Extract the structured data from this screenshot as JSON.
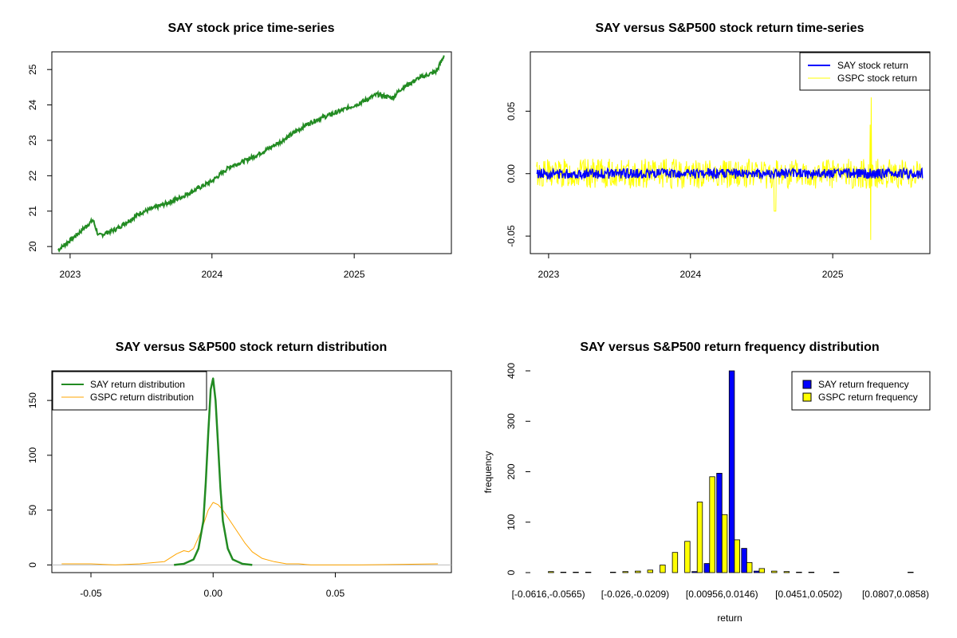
{
  "chart_data": [
    {
      "type": "line",
      "title": "SAY stock price time-series",
      "xlabel": "",
      "ylabel": "",
      "x_ticks": [
        "2023",
        "2024",
        "2025"
      ],
      "y_ticks": [
        20,
        21,
        22,
        23,
        24,
        25
      ],
      "xlim": [
        "2022-11-15",
        "2025-09-08"
      ],
      "ylim": [
        19.8,
        25.5
      ],
      "series": [
        {
          "color": "#228B22",
          "x": [
            "2022-12-01",
            "2023-01-15",
            "2023-03-01",
            "2023-03-15",
            "2023-05-01",
            "2023-07-01",
            "2023-09-01",
            "2023-10-15",
            "2024-01-01",
            "2024-02-15",
            "2024-04-01",
            "2024-05-15",
            "2024-07-01",
            "2024-09-01",
            "2024-10-01",
            "2024-12-01",
            "2025-01-15",
            "2025-03-01",
            "2025-04-10",
            "2025-05-01",
            "2025-06-15",
            "2025-08-01",
            "2025-08-20"
          ],
          "values": [
            19.9,
            20.3,
            20.75,
            20.3,
            20.5,
            20.95,
            21.2,
            21.4,
            21.85,
            22.25,
            22.45,
            22.7,
            23.0,
            23.45,
            23.6,
            23.85,
            24.05,
            24.3,
            24.2,
            24.45,
            24.75,
            24.95,
            25.4
          ]
        }
      ]
    },
    {
      "type": "line",
      "title": "SAY versus S&P500 stock return time-series",
      "xlabel": "",
      "ylabel": "",
      "x_ticks": [
        "2023",
        "2024",
        "2025"
      ],
      "y_ticks": [
        "-0.05",
        "0.00",
        "0.05"
      ],
      "xlim": [
        "2022-11-15",
        "2025-09-08"
      ],
      "ylim": [
        -0.064,
        0.0975
      ],
      "legend": "top-right",
      "series": [
        {
          "name": "SAY stock return",
          "color": "#0000FF",
          "amplitude": 0.004
        },
        {
          "name": "GSPC stock return",
          "color": "#FFFF00",
          "amplitude": 0.012
        }
      ]
    },
    {
      "type": "line",
      "title": "SAY versus S&P500 stock return distribution",
      "xlabel": "",
      "ylabel": "",
      "x_ticks": [
        "-0.05",
        "0.00",
        "0.05"
      ],
      "y_ticks": [
        0,
        50,
        100,
        150
      ],
      "xlim": [
        -0.066,
        0.0975
      ],
      "ylim": [
        -7,
        177
      ],
      "legend": "top-left",
      "series": [
        {
          "name": "SAY return distribution",
          "color": "#228B22",
          "x": [
            -0.016,
            -0.012,
            -0.008,
            -0.006,
            -0.004,
            -0.003,
            -0.002,
            -0.001,
            0,
            0.001,
            0.002,
            0.003,
            0.004,
            0.006,
            0.008,
            0.012,
            0.016
          ],
          "values": [
            0,
            1,
            5,
            15,
            40,
            75,
            120,
            160,
            170,
            150,
            110,
            70,
            40,
            15,
            5,
            1,
            0
          ]
        },
        {
          "name": "GSPC return distribution",
          "color": "#FFA500",
          "x": [
            -0.062,
            -0.05,
            -0.04,
            -0.03,
            -0.02,
            -0.015,
            -0.012,
            -0.01,
            -0.008,
            -0.005,
            -0.002,
            0,
            0.002,
            0.004,
            0.007,
            0.01,
            0.013,
            0.016,
            0.02,
            0.025,
            0.03,
            0.035,
            0.04,
            0.06,
            0.092
          ],
          "values": [
            1,
            1,
            0,
            1,
            3,
            10,
            13,
            12,
            15,
            30,
            50,
            57,
            55,
            50,
            40,
            30,
            20,
            12,
            6,
            3,
            1,
            1,
            0,
            0,
            1
          ]
        }
      ]
    },
    {
      "type": "bar",
      "title": "SAY versus S&P500 return frequency distribution",
      "xlabel": "return",
      "ylabel": "frequency",
      "x_tick_labels": [
        "[-0.0616,-0.0565)",
        "[-0.026,-0.0209)",
        "[0.00956,0.0146)",
        "[0.0451,0.0502)",
        "[0.0807,0.0858)"
      ],
      "y_ticks": [
        0,
        100,
        200,
        300,
        400
      ],
      "ylim": [
        0,
        400
      ],
      "legend": "top-right",
      "series": [
        {
          "name": "SAY return frequency",
          "color": "#0000FF",
          "values": [
            0,
            0,
            0,
            0,
            0,
            0,
            0,
            0,
            0,
            0,
            0,
            0,
            2,
            18,
            197,
            400,
            48,
            3,
            0,
            0,
            0,
            0,
            0,
            0,
            0,
            0,
            0,
            0,
            0,
            0
          ]
        },
        {
          "name": "GSPC return frequency",
          "color": "#FFFF00",
          "values": [
            2,
            1,
            1,
            1,
            0,
            1,
            2,
            3,
            5,
            15,
            40,
            62,
            140,
            190,
            115,
            65,
            20,
            8,
            3,
            2,
            1,
            1,
            0,
            1,
            0,
            0,
            0,
            0,
            0,
            1
          ]
        }
      ]
    }
  ]
}
